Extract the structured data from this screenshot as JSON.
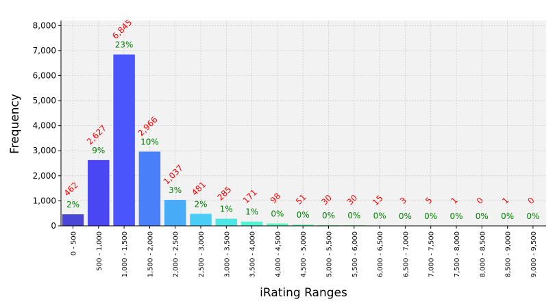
{
  "chart_data": {
    "type": "bar",
    "xlabel": "iRating Ranges",
    "ylabel": "Frequency",
    "ylim": [
      0,
      8200
    ],
    "yticks": [
      0,
      1000,
      2000,
      3000,
      4000,
      5000,
      6000,
      7000,
      8000
    ],
    "ytick_labels": [
      "0",
      "1,000",
      "2,000",
      "3,000",
      "4,000",
      "5,000",
      "6,000",
      "7,000",
      "8,000"
    ],
    "grid": true,
    "categories": [
      "0 - 500",
      "500 - 1,000",
      "1,000 - 1,500",
      "1,500 - 2,000",
      "2,000 - 2,500",
      "2,500 - 3,000",
      "3,000 - 3,500",
      "3,500 - 4,000",
      "4,000 - 4,500",
      "4,500 - 5,000",
      "5,000 - 5,500",
      "5,500 - 6,000",
      "6,000 - 6,500",
      "6,500 - 7,000",
      "7,000 - 7,500",
      "7,500 - 8,000",
      "8,000 - 8,500",
      "8,500 - 9,000",
      "9,000 - 9,500"
    ],
    "values": [
      462,
      2627,
      6845,
      2966,
      1037,
      481,
      285,
      171,
      98,
      51,
      30,
      30,
      15,
      3,
      5,
      1,
      0,
      1,
      0
    ],
    "count_labels": [
      "462",
      "2,627",
      "6,845",
      "2,966",
      "1,037",
      "481",
      "285",
      "171",
      "98",
      "51",
      "30",
      "30",
      "15",
      "3",
      "5",
      "1",
      "0",
      "1",
      "0"
    ],
    "percent_labels": [
      "2%",
      "9%",
      "23%",
      "10%",
      "3%",
      "2%",
      "1%",
      "1%",
      "0%",
      "0%",
      "0%",
      "0%",
      "0%",
      "0%",
      "0%",
      "0%",
      "0%",
      "0%",
      "0%"
    ],
    "bar_colors": [
      "#4b47d6",
      "#4a46f2",
      "#4a56fb",
      "#4980f9",
      "#48abf8",
      "#49ccf5",
      "#4ce6e5",
      "#55f1d4",
      "#63f5c5",
      "#70f6b6",
      "#7ef6a6",
      "#8df695",
      "#9cf585",
      "#abf377",
      "#b9ef69",
      "#c7ea5b",
      "#d4e34f",
      "#e0da45",
      "#eacf3c"
    ],
    "count_label_color": "#ff0000",
    "percent_label_color": "#008000"
  }
}
